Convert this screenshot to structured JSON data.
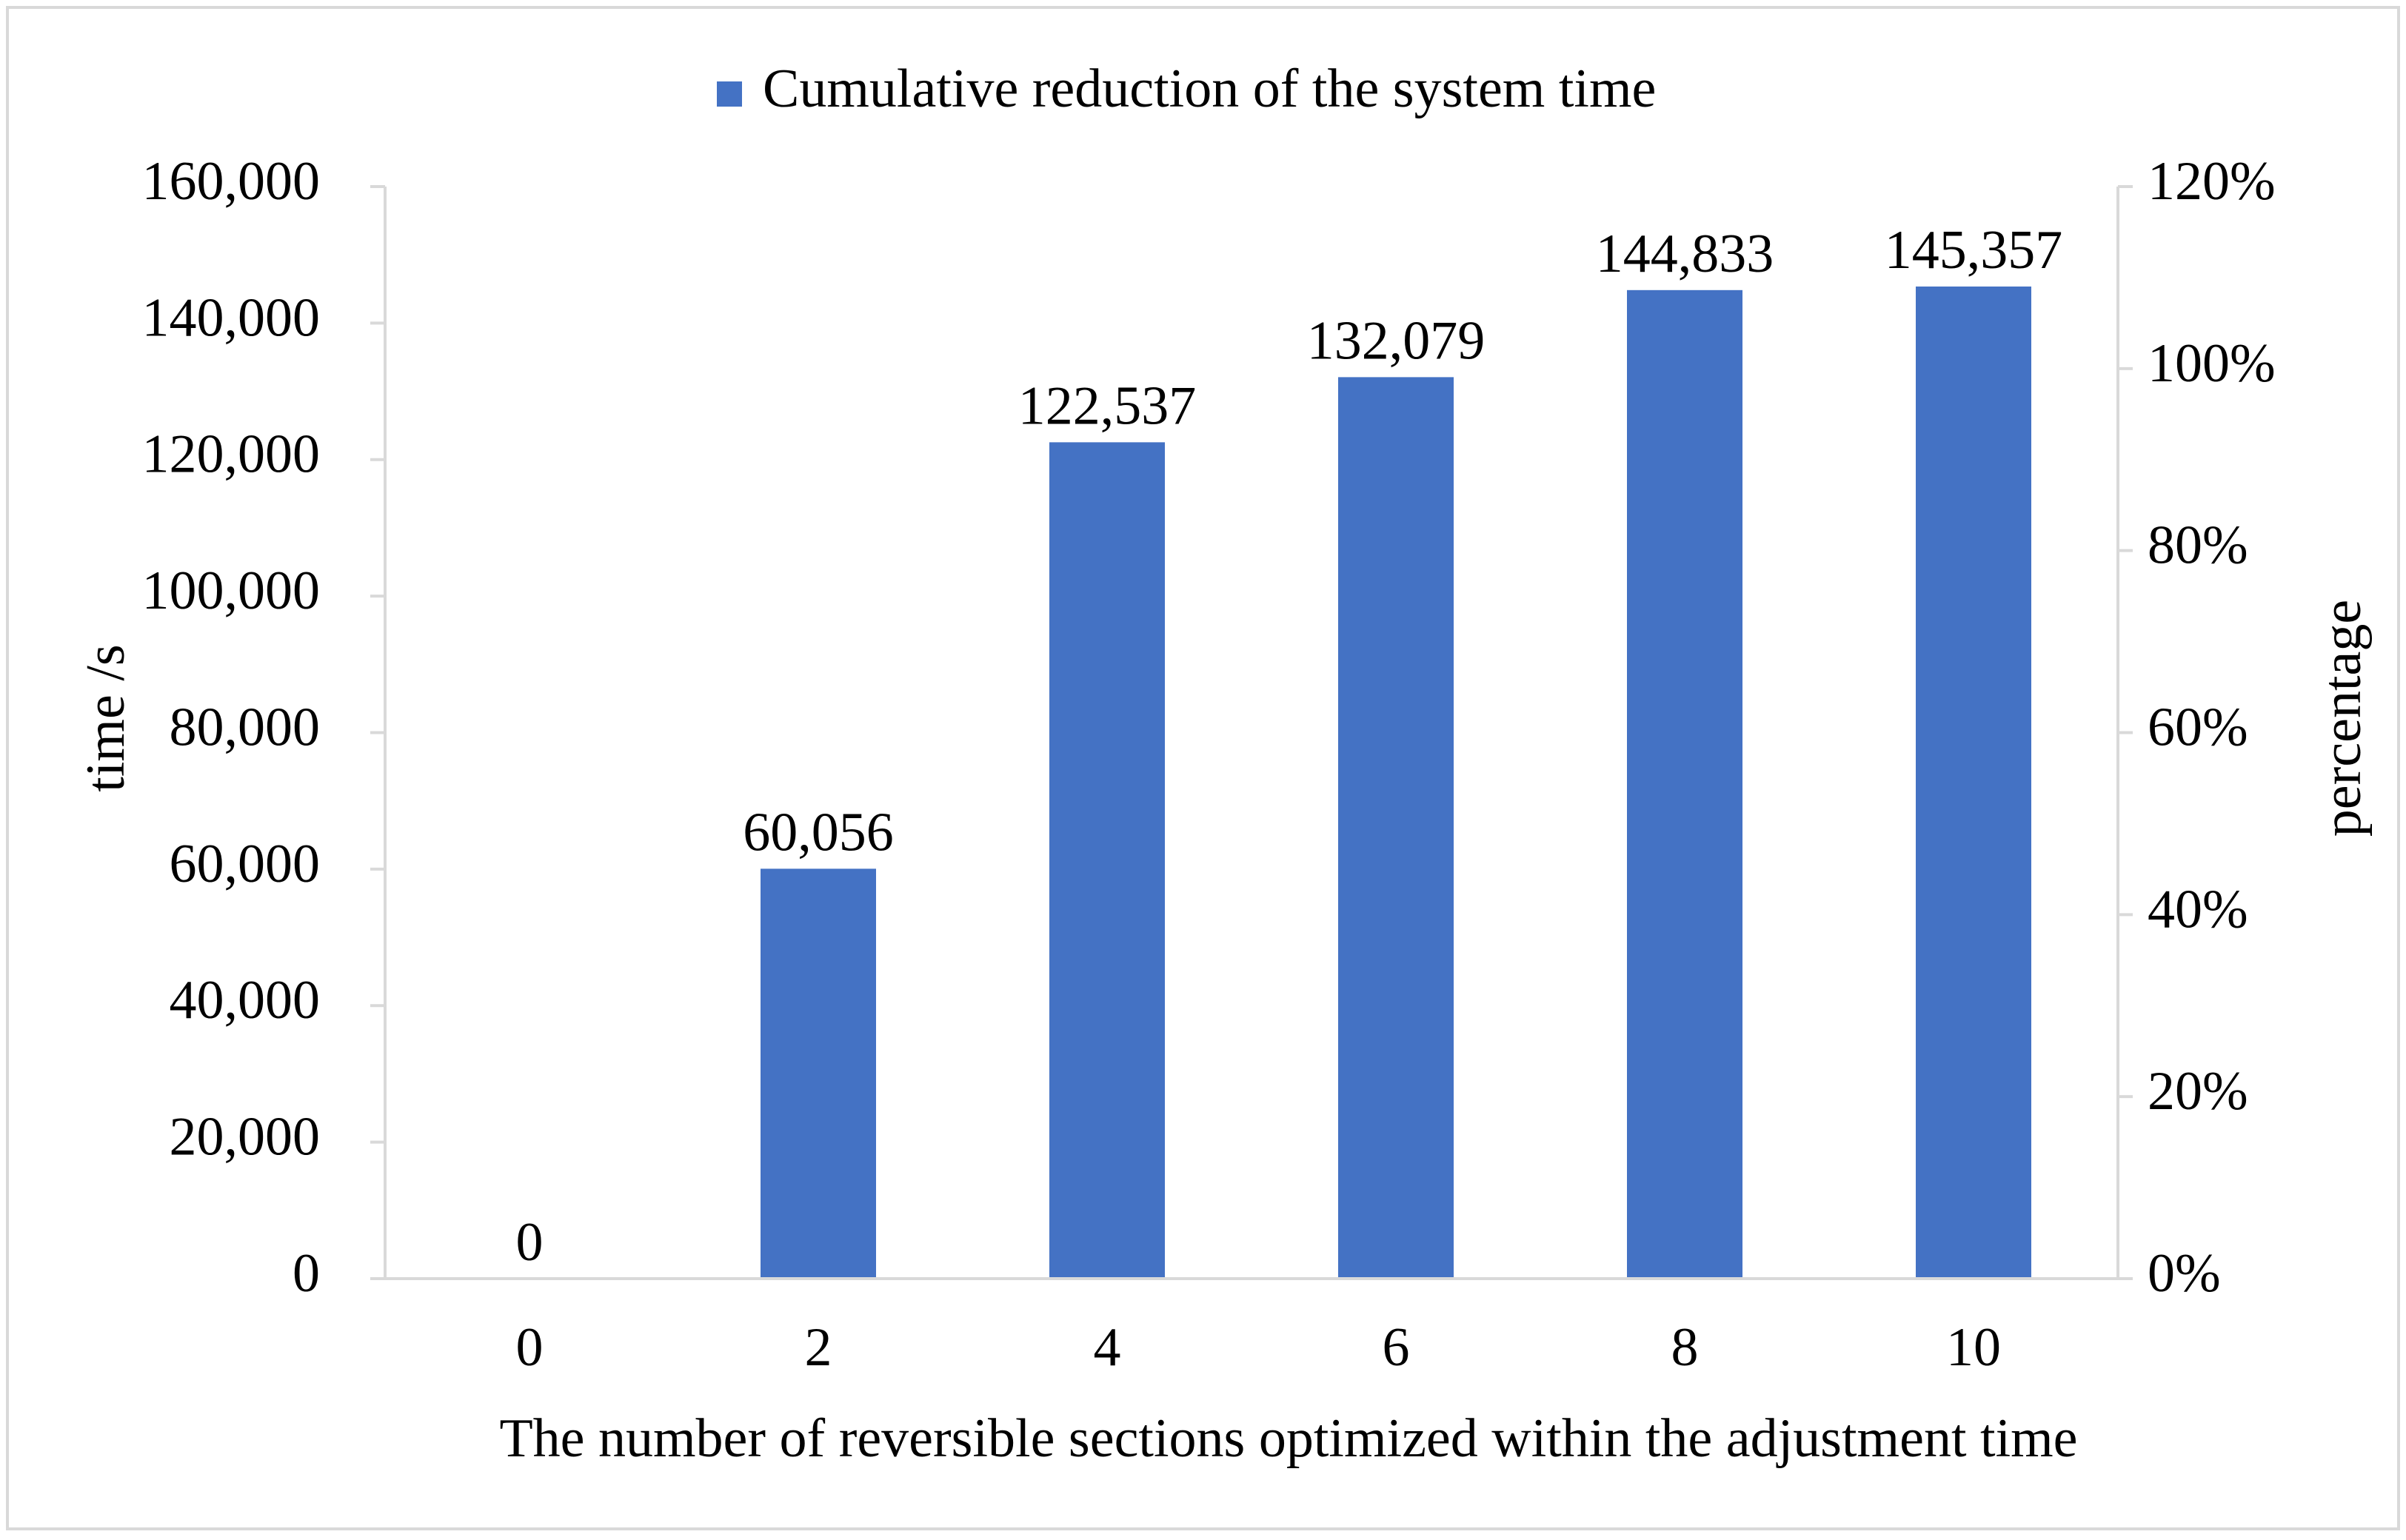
{
  "chart_data": {
    "type": "bar",
    "legend": {
      "position": "top",
      "entries": [
        {
          "label": "Cumulative reduction of the system time",
          "color": "#4472C4"
        }
      ]
    },
    "xlabel": "The number of reversible sections optimized within the adjustment time",
    "ylabel": "time /s",
    "y2label": "percentage",
    "categories": [
      "0",
      "2",
      "4",
      "6",
      "8",
      "10"
    ],
    "series": [
      {
        "name": "Cumulative reduction of the system time",
        "color": "#4472C4",
        "values": [
          0,
          60056,
          122537,
          132079,
          144833,
          145357
        ],
        "data_labels": [
          "0",
          "60,056",
          "122,537",
          "132,079",
          "144,833",
          "145,357"
        ]
      }
    ],
    "ylim": [
      0,
      160000
    ],
    "yticks": [
      "0",
      "20,000",
      "40,000",
      "60,000",
      "80,000",
      "100,000",
      "120,000",
      "140,000",
      "160,000"
    ],
    "y2lim": [
      0,
      1.2
    ],
    "y2ticks": [
      "0%",
      "20%",
      "40%",
      "60%",
      "80%",
      "100%",
      "120%"
    ],
    "grid": false,
    "colors": {
      "bar": "#4472C4",
      "axis": "#D9D9D9",
      "frame": "#D9D9D9"
    }
  }
}
